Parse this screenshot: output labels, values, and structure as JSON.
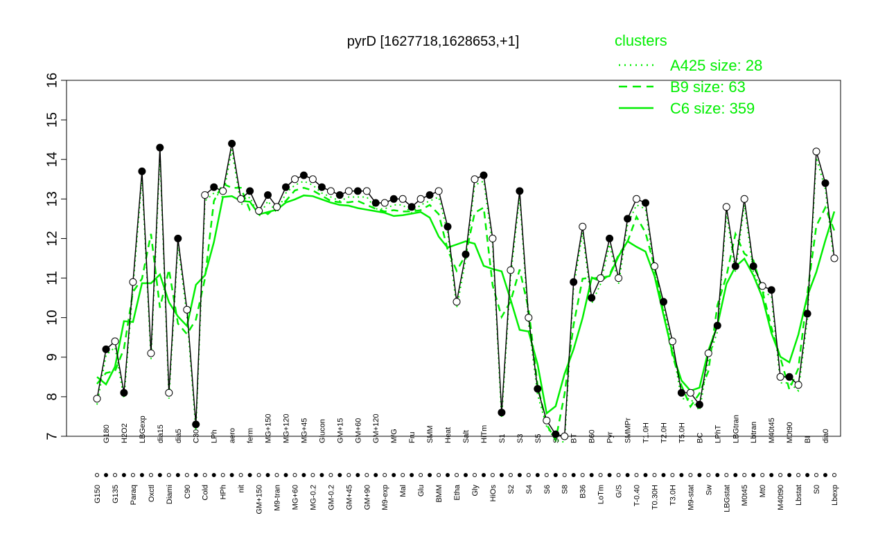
{
  "chart_data": {
    "type": "line",
    "title": "pyrD [1627718,1628653,+1]",
    "xlabel": "",
    "ylabel": "",
    "ylim": [
      7,
      16
    ],
    "yticks": [
      7,
      8,
      9,
      10,
      11,
      12,
      13,
      14,
      15,
      16
    ],
    "grid": false,
    "legend": {
      "title": "clusters",
      "placement": "top-right",
      "color": "#00ee00",
      "entries": [
        {
          "label": "A425 size: 28",
          "style": "dotted"
        },
        {
          "label": "B9 size: 63",
          "style": "dashed"
        },
        {
          "label": "C6 size: 359",
          "style": "solid"
        }
      ]
    },
    "colors": {
      "series": "#00ee00",
      "profile": "#000000"
    },
    "categories": [
      "G150",
      "G180",
      "G135",
      "H2O2",
      "Paraq",
      "LBGexp",
      "Oxctl",
      "dia15",
      "Diami",
      "dia5",
      "C90",
      "C30",
      "Cold",
      "LPh",
      "HPh",
      "aero",
      "nit",
      "ferm",
      "GM+150",
      "MG+150",
      "M9-tran",
      "MG+120",
      "MG+60",
      "MG+45",
      "MG-0.2",
      "Glucon",
      "GM-0.2",
      "GM+15",
      "GM+45",
      "GM+60",
      "GM+90",
      "GM+120",
      "M9-exp",
      "M/G",
      "Mal",
      "Fru",
      "Glu",
      "SMM",
      "BMM",
      "Heat",
      "Etha",
      "Salt",
      "Gly",
      "HiTm",
      "HiOs",
      "S1",
      "S2",
      "S3",
      "S4",
      "S5",
      "S6",
      "S7",
      "S8",
      "BT",
      "B36",
      "B60",
      "LoTm",
      "Pyr",
      "G/S",
      "SMMPr",
      "T-0.40",
      "T1.0H",
      "T0.30H",
      "T2.0H",
      "T3.0H",
      "T5.0H",
      "M9-stat",
      "BC",
      "Sw",
      "LPhT",
      "LBGstat",
      "LBGtran",
      "M0t45",
      "Lbtran",
      "Mt0",
      "M40t45",
      "M40t90",
      "M0t90",
      "Lbstat",
      "BI",
      "S0",
      "dia0",
      "Lbexp"
    ],
    "series": [
      {
        "name": "",
        "values": [
          7.95,
          9.2,
          9.4,
          8.1,
          10.9,
          13.7,
          9.1,
          14.3,
          8.1,
          12.0,
          10.2,
          7.3,
          13.1,
          13.3,
          13.2,
          14.4,
          13.0,
          13.2,
          12.7,
          13.1,
          12.8,
          13.3,
          13.5,
          13.6,
          13.5,
          13.3,
          13.2,
          13.1,
          13.2,
          13.2,
          13.2,
          12.9,
          12.9,
          13.0,
          13.0,
          12.8,
          13.0,
          13.1,
          13.2,
          12.3,
          10.4,
          11.6,
          13.5,
          13.6,
          12.0,
          7.6,
          11.2,
          13.2,
          10.0,
          8.2,
          7.4,
          7.05,
          7.0,
          10.9,
          12.3,
          10.5,
          11.0,
          12.0,
          11.0,
          12.5,
          13.0,
          12.9,
          11.3,
          10.4,
          9.4,
          8.1,
          8.1,
          7.8,
          9.1,
          9.8,
          12.8,
          11.3,
          13.0,
          11.3,
          10.8,
          10.7,
          8.5,
          8.5,
          8.3,
          10.1,
          14.2,
          13.4,
          11.5
        ]
      }
    ]
  }
}
